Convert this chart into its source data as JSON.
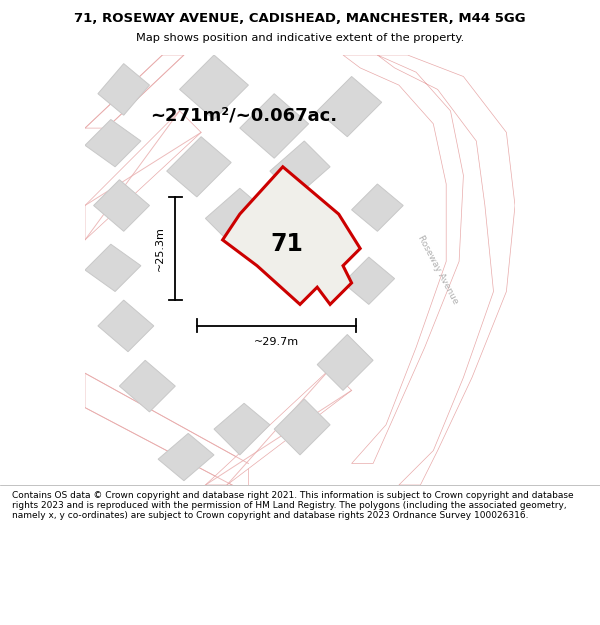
{
  "title_line1": "71, ROSEWAY AVENUE, CADISHEAD, MANCHESTER, M44 5GG",
  "title_line2": "Map shows position and indicative extent of the property.",
  "area_text": "~271m²/~0.067ac.",
  "label_71": "71",
  "dim_width": "~29.7m",
  "dim_height": "~25.3m",
  "road_label": "Roseway Avenue",
  "footer_text": "Contains OS data © Crown copyright and database right 2021. This information is subject to Crown copyright and database rights 2023 and is reproduced with the permission of HM Land Registry. The polygons (including the associated geometry, namely x, y co-ordinates) are subject to Crown copyright and database rights 2023 Ordnance Survey 100026316.",
  "map_bg": "#eeede8",
  "building_fill": "#d8d8d8",
  "building_edge": "#c8c8c8",
  "road_fill": "#ffffff",
  "road_stroke": "#e8aaaa",
  "plot_fill": "#f0efea",
  "plot_stroke": "#cc0000",
  "title_bg": "#ffffff",
  "footer_bg": "#ffffff"
}
